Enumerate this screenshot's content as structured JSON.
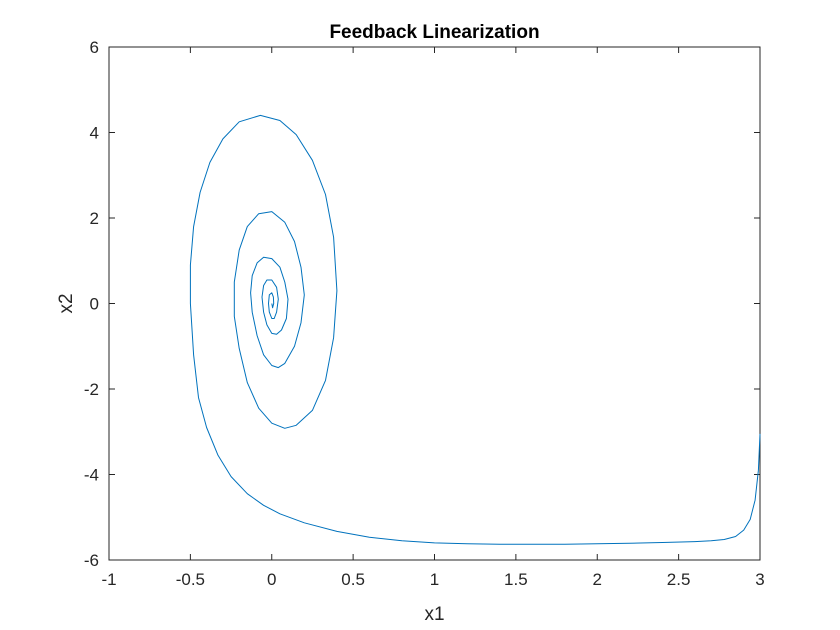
{
  "chart_data": {
    "type": "line",
    "title": "Feedback Linearization",
    "xlabel": "x1",
    "ylabel": "x2",
    "xlim": [
      -1,
      3
    ],
    "ylim": [
      -6,
      6
    ],
    "xticks": [
      -1,
      -0.5,
      0,
      0.5,
      1,
      1.5,
      2,
      2.5,
      3
    ],
    "yticks": [
      -6,
      -4,
      -2,
      0,
      2,
      4,
      6
    ],
    "grid": false,
    "series": [
      {
        "color": "#0072BD",
        "x": [
          3.0,
          2.99,
          2.97,
          2.94,
          2.9,
          2.85,
          2.78,
          2.7,
          2.6,
          2.4,
          2.2,
          2.0,
          1.8,
          1.6,
          1.4,
          1.2,
          1.0,
          0.8,
          0.6,
          0.4,
          0.2,
          0.05,
          -0.05,
          -0.15,
          -0.25,
          -0.33,
          -0.4,
          -0.45,
          -0.48,
          -0.5,
          -0.5,
          -0.48,
          -0.44,
          -0.38,
          -0.3,
          -0.2,
          -0.07,
          0.05,
          0.15,
          0.25,
          0.33,
          0.38,
          0.4,
          0.38,
          0.33,
          0.25,
          0.15,
          0.08,
          0.0,
          -0.08,
          -0.15,
          -0.2,
          -0.23,
          -0.23,
          -0.2,
          -0.15,
          -0.08,
          0.0,
          0.08,
          0.14,
          0.18,
          0.2,
          0.18,
          0.14,
          0.08,
          0.04,
          0.0,
          -0.05,
          -0.09,
          -0.12,
          -0.13,
          -0.12,
          -0.09,
          -0.05,
          0.0,
          0.05,
          0.08,
          0.1,
          0.09,
          0.06,
          0.03,
          0.0,
          -0.03,
          -0.05,
          -0.06,
          -0.05,
          -0.03,
          0.0,
          0.03,
          0.04,
          0.03,
          0.015,
          0.0,
          -0.015,
          -0.02,
          -0.015,
          0.0,
          0.01,
          0.012,
          0.005,
          0.0
        ],
        "y": [
          -3.05,
          -3.9,
          -4.6,
          -5.05,
          -5.3,
          -5.45,
          -5.52,
          -5.55,
          -5.57,
          -5.59,
          -5.61,
          -5.62,
          -5.63,
          -5.63,
          -5.63,
          -5.62,
          -5.6,
          -5.55,
          -5.47,
          -5.33,
          -5.13,
          -4.92,
          -4.72,
          -4.45,
          -4.05,
          -3.55,
          -2.9,
          -2.2,
          -1.2,
          0.0,
          0.9,
          1.8,
          2.6,
          3.3,
          3.85,
          4.25,
          4.4,
          4.28,
          3.95,
          3.35,
          2.55,
          1.55,
          0.3,
          -0.8,
          -1.8,
          -2.5,
          -2.85,
          -2.92,
          -2.8,
          -2.45,
          -1.85,
          -1.05,
          -0.3,
          0.5,
          1.25,
          1.8,
          2.1,
          2.15,
          1.9,
          1.45,
          0.85,
          0.2,
          -0.45,
          -1.0,
          -1.4,
          -1.5,
          -1.45,
          -1.2,
          -0.75,
          -0.2,
          0.25,
          0.65,
          0.95,
          1.08,
          1.05,
          0.85,
          0.5,
          0.1,
          -0.35,
          -0.62,
          -0.72,
          -0.7,
          -0.5,
          -0.2,
          0.15,
          0.42,
          0.55,
          0.55,
          0.38,
          0.1,
          -0.2,
          -0.35,
          -0.35,
          -0.2,
          0.0,
          0.2,
          0.25,
          0.15,
          0.0,
          -0.1,
          0.0
        ]
      }
    ]
  }
}
